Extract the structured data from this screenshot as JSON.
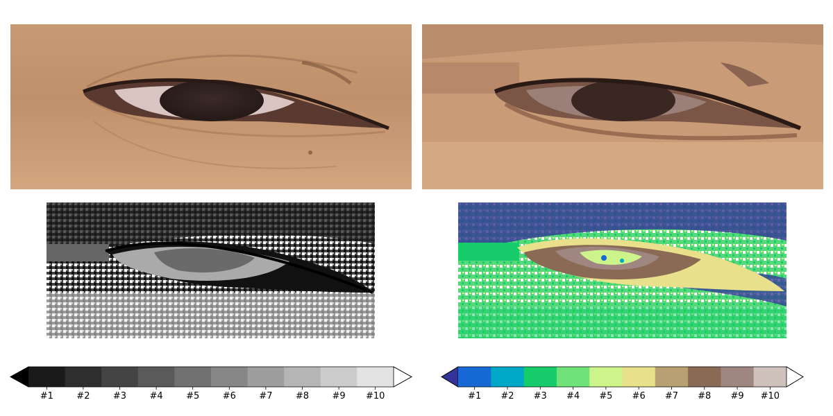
{
  "panels": {
    "original": {
      "icon": "eye-photo"
    },
    "quantized": {
      "icon": "eye-photo-posterized"
    },
    "gray": {
      "icon": "gray-level-map"
    },
    "terrain": {
      "icon": "terrain-level-map"
    }
  },
  "colorbars": {
    "gray": {
      "labels": [
        "#1",
        "#2",
        "#3",
        "#4",
        "#5",
        "#6",
        "#7",
        "#8",
        "#9",
        "#10"
      ],
      "under_color": "#000000",
      "over_color": "#ffffff",
      "colors": [
        "#1a1a1a",
        "#2e2e2e",
        "#444444",
        "#5a5a5a",
        "#717171",
        "#878787",
        "#9e9e9e",
        "#b5b5b5",
        "#cccccc",
        "#e3e3e3"
      ]
    },
    "terrain": {
      "labels": [
        "#1",
        "#2",
        "#3",
        "#4",
        "#5",
        "#6",
        "#7",
        "#8",
        "#9",
        "#10"
      ],
      "under_color": "#333399",
      "over_color": "#ffffff",
      "colors": [
        "#1769d6",
        "#00a8c8",
        "#16cc6a",
        "#6fe27a",
        "#ccf48a",
        "#e8e08a",
        "#b8a072",
        "#8a6a54",
        "#a08680",
        "#cfc2bd"
      ]
    }
  }
}
